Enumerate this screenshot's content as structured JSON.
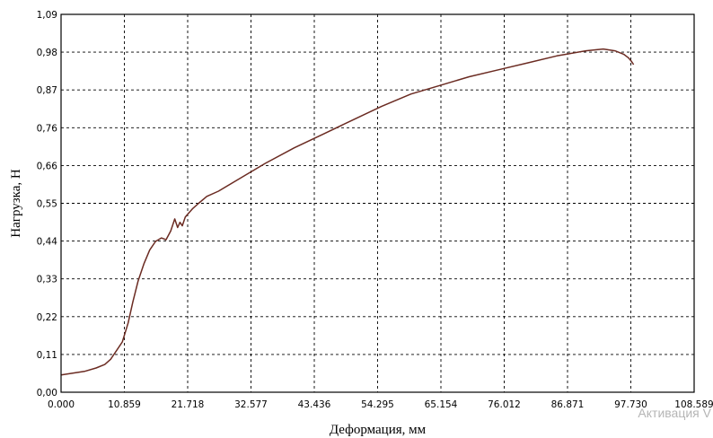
{
  "chart_data": {
    "type": "line",
    "xlabel": "Деформация, мм",
    "ylabel": "Нагрузка, Н",
    "xlim": [
      0,
      108.589
    ],
    "ylim": [
      0,
      1.09
    ],
    "x_ticks": [
      "0.000",
      "10.859",
      "21.718",
      "32.577",
      "43.436",
      "54.295",
      "65.154",
      "76.012",
      "86.871",
      "97.730",
      "108.589"
    ],
    "y_ticks": [
      "0,00",
      "0,11",
      "0,22",
      "0,33",
      "0,44",
      "0,55",
      "0,66",
      "0,76",
      "0,87",
      "0,98",
      "1,09"
    ],
    "grid": true,
    "series": [
      {
        "color": "#6b2b22",
        "x": [
          0,
          2,
          4,
          6,
          7.5,
          8.5,
          9.5,
          10.5,
          11.5,
          12.3,
          13.2,
          14.2,
          15.2,
          16.2,
          17.2,
          18.0,
          18.8,
          19.5,
          20.0,
          20.4,
          20.8,
          21.3,
          21.8,
          22.6,
          23.6,
          25,
          27,
          30,
          35,
          40,
          45,
          50,
          55,
          60,
          65,
          70,
          75,
          80,
          85,
          90,
          93,
          95,
          96.5,
          97.3,
          97.8,
          98.2
        ],
        "y": [
          0.05,
          0.055,
          0.06,
          0.07,
          0.08,
          0.095,
          0.12,
          0.145,
          0.2,
          0.26,
          0.32,
          0.37,
          0.41,
          0.435,
          0.445,
          0.44,
          0.465,
          0.5,
          0.475,
          0.49,
          0.48,
          0.505,
          0.515,
          0.53,
          0.545,
          0.565,
          0.58,
          0.61,
          0.66,
          0.705,
          0.745,
          0.785,
          0.825,
          0.86,
          0.885,
          0.91,
          0.93,
          0.95,
          0.97,
          0.985,
          0.99,
          0.985,
          0.975,
          0.965,
          0.955,
          0.945
        ]
      }
    ]
  },
  "watermark": "Активация V"
}
